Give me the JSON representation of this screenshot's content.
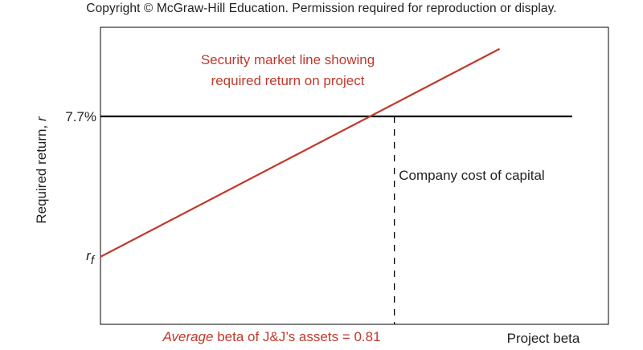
{
  "copyright": "Copyright © McGraw-Hill Education. Permission required for reproduction or display.",
  "colors": {
    "sml": "#c0392b",
    "cost": "#000000",
    "text": "#231f20",
    "frame": "#000000"
  },
  "chart_data": {
    "type": "line",
    "title": "",
    "xlabel": "Project beta",
    "ylabel": "Required return, r",
    "ytick_labels": {
      "cost_of_capital": "7.7%",
      "risk_free_sub": "f",
      "risk_free_main": "r"
    },
    "xlim": [
      0,
      1.4
    ],
    "ylim": [
      0,
      11
    ],
    "series": [
      {
        "key": "sml",
        "points": [
          [
            0,
            2.5
          ],
          [
            1.1,
            10.2
          ]
        ]
      },
      {
        "key": "cost",
        "points": [
          [
            0,
            7.7
          ],
          [
            1.4,
            7.7
          ]
        ]
      }
    ],
    "average_beta": 0.81,
    "cost_of_capital_value": 7.7,
    "annotations": {
      "sml_line1": "Security market line showing",
      "sml_line2": "required return on project",
      "cost_label": "Company cost of capital",
      "beta_italic": "Average",
      "beta_rest": " beta of J&J’s assets = 0.81"
    }
  }
}
